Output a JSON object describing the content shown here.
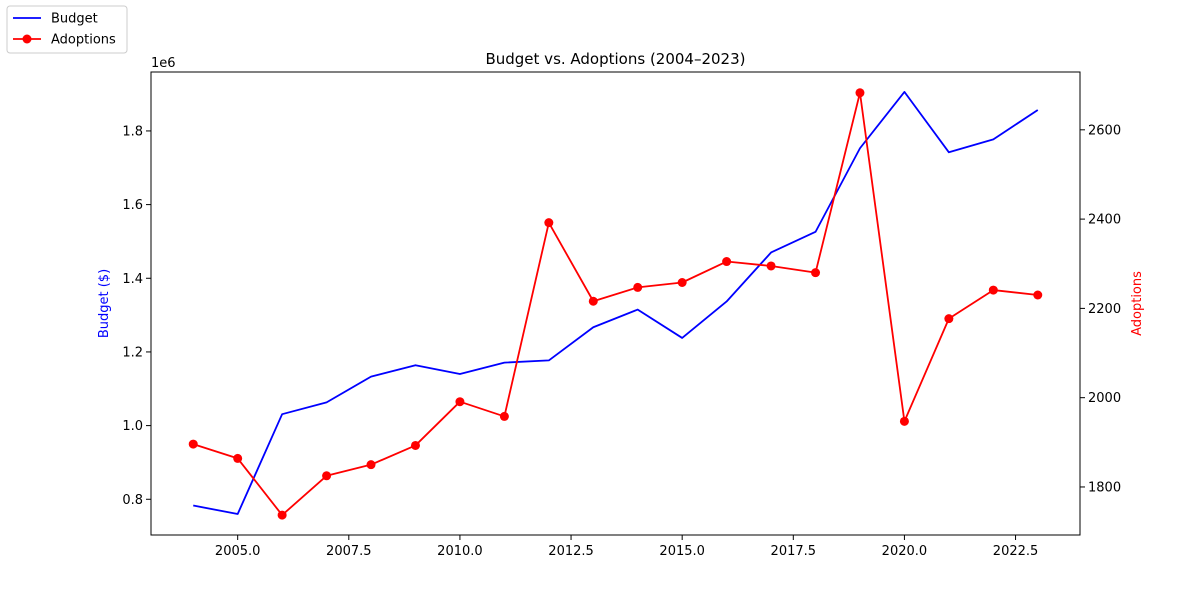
{
  "chart_data": {
    "type": "line",
    "title": "Budget vs. Adoptions (2004–2023)",
    "x": [
      2004,
      2005,
      2006,
      2007,
      2008,
      2009,
      2010,
      2011,
      2012,
      2013,
      2014,
      2015,
      2016,
      2017,
      2018,
      2019,
      2020,
      2021,
      2022,
      2023
    ],
    "xlim": [
      2003.05,
      2023.95
    ],
    "xticks": [
      2005.0,
      2007.5,
      2010.0,
      2012.5,
      2015.0,
      2017.5,
      2020.0,
      2022.5
    ],
    "xtick_labels": [
      "2005.0",
      "2007.5",
      "2010.0",
      "2012.5",
      "2015.0",
      "2017.5",
      "2020.0",
      "2022.5"
    ],
    "left_axis": {
      "label": "Budget ($)",
      "color": "#0000ff",
      "scale_note": "1e6",
      "ylim": [
        0.703,
        1.96
      ],
      "ticks": [
        0.8,
        1.0,
        1.2,
        1.4,
        1.6,
        1.8
      ],
      "tick_labels": [
        "0.8",
        "1.0",
        "1.2",
        "1.4",
        "1.6",
        "1.8"
      ]
    },
    "right_axis": {
      "label": "Adoptions",
      "color": "#ff0000",
      "ylim": [
        1692.4,
        2729.5
      ],
      "ticks": [
        1800,
        2000,
        2200,
        2400,
        2600
      ],
      "tick_labels": [
        "1800",
        "2000",
        "2200",
        "2400",
        "2600"
      ]
    },
    "series": [
      {
        "name": "Budget",
        "axis": "left",
        "color": "#0000ff",
        "marker": "none",
        "values": [
          783000,
          760000,
          1031000,
          1063000,
          1133000,
          1164000,
          1140000,
          1171000,
          1177000,
          1267000,
          1315000,
          1238000,
          1337000,
          1470000,
          1526000,
          1753000,
          1906000,
          1742000,
          1777000,
          1857000
        ]
      },
      {
        "name": "Adoptions",
        "axis": "right",
        "color": "#ff0000",
        "marker": "circle",
        "values": [
          1896,
          1864,
          1737,
          1825,
          1850,
          1893,
          1991,
          1958,
          2392,
          2216,
          2247,
          2258,
          2305,
          2295,
          2280,
          2683,
          1947,
          2177,
          2241,
          2230
        ]
      }
    ],
    "legend_position": "top-left (outside plot)",
    "grid": false
  }
}
